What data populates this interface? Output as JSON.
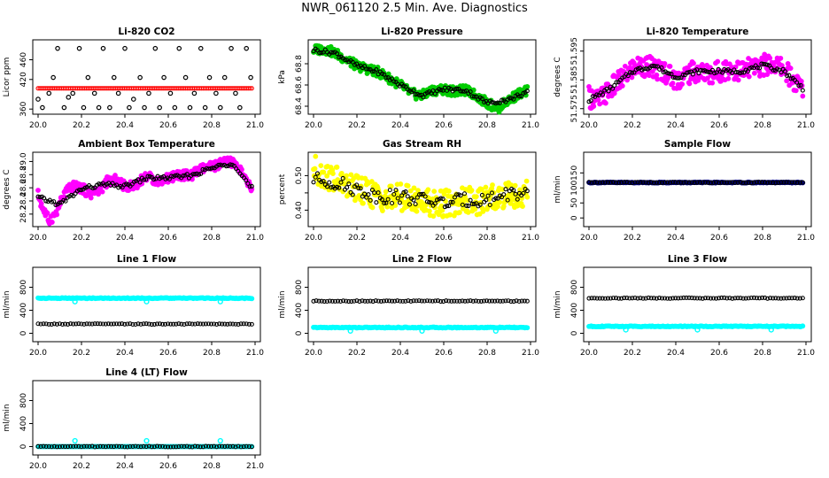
{
  "page_title": "NWR_061120  2.5 Min. Ave. Diagnostics",
  "colors": {
    "magenta": "#ff00ff",
    "red": "#ff0000",
    "green": "#00cc00",
    "yellow": "#ffff00",
    "cyan": "#00ffff",
    "navy": "#000080",
    "black": "#000000"
  },
  "chart_data": [
    {
      "id": "li820-co2",
      "type": "scatter",
      "title": "Li-820 CO2",
      "ylabel": "Licor ppm",
      "xlim": [
        20.0,
        21.0
      ],
      "ylim": [
        355,
        495
      ],
      "xticks": [
        20.0,
        20.2,
        20.4,
        20.6,
        20.8,
        21.0
      ],
      "xtick_labels": [
        "20.0",
        "20.2",
        "20.4",
        "20.6",
        "20.8",
        "21.0"
      ],
      "yticks": [
        360,
        420,
        460
      ],
      "ytick_labels": [
        "360",
        "420",
        "460"
      ],
      "series": [
        {
          "name": "raw",
          "color": "#000000",
          "x": [
            20.0,
            20.02,
            20.05,
            20.07,
            20.09,
            20.12,
            20.14,
            20.16,
            20.19,
            20.21,
            20.23,
            20.26,
            20.28,
            20.3,
            20.33,
            20.35,
            20.37,
            20.4,
            20.42,
            20.44,
            20.47,
            20.49,
            20.51,
            20.54,
            20.56,
            20.58,
            20.61,
            20.63,
            20.65,
            20.68,
            20.7,
            20.72,
            20.75,
            20.77,
            20.79,
            20.82,
            20.84,
            20.86,
            20.89,
            20.91,
            20.93,
            20.96,
            20.98
          ],
          "y": [
            380,
            363,
            392,
            424,
            483,
            363,
            384,
            392,
            483,
            363,
            424,
            392,
            363,
            483,
            363,
            424,
            392,
            483,
            363,
            380,
            424,
            363,
            392,
            483,
            363,
            424,
            392,
            363,
            483,
            424,
            363,
            392,
            483,
            363,
            424,
            392,
            363,
            424,
            483,
            392,
            363,
            483,
            424
          ]
        },
        {
          "name": "avg",
          "color": "#ff0000",
          "x": [
            20.0,
            20.05,
            20.1,
            20.15,
            20.2,
            20.25,
            20.3,
            20.35,
            20.4,
            20.45,
            20.5,
            20.55,
            20.6,
            20.65,
            20.7,
            20.75,
            20.8,
            20.85,
            20.9,
            20.95,
            21.0
          ],
          "y": [
            402,
            402,
            402,
            402,
            402,
            402,
            402,
            402,
            402,
            402,
            402,
            402,
            402,
            402,
            402,
            402,
            402,
            402,
            402,
            402,
            402
          ]
        }
      ]
    },
    {
      "id": "li820-pressure",
      "type": "scatter",
      "title": "Li-820 Pressure",
      "ylabel": "kPa",
      "xlim": [
        20.0,
        21.0
      ],
      "ylim": [
        68.35,
        69.0
      ],
      "xticks": [
        20.0,
        20.2,
        20.4,
        20.6,
        20.8,
        21.0
      ],
      "xtick_labels": [
        "20.0",
        "20.2",
        "20.4",
        "20.6",
        "20.8",
        "21.0"
      ],
      "yticks": [
        68.4,
        68.6,
        68.8
      ],
      "ytick_labels": [
        "68.4",
        "68.6",
        "68.8"
      ],
      "series": [
        {
          "name": "raw",
          "color": "#00cc00",
          "x": [
            20.0,
            20.05,
            20.1,
            20.15,
            20.2,
            20.25,
            20.3,
            20.35,
            20.4,
            20.45,
            20.5,
            20.55,
            20.6,
            20.65,
            20.7,
            20.75,
            20.8,
            20.85,
            20.9,
            20.95,
            21.0
          ],
          "y": [
            68.93,
            68.94,
            68.9,
            68.84,
            68.78,
            68.75,
            68.72,
            68.66,
            68.6,
            68.52,
            68.5,
            68.55,
            68.56,
            68.54,
            68.55,
            68.5,
            68.43,
            68.38,
            68.46,
            68.52,
            68.55
          ]
        },
        {
          "name": "avg",
          "color": "#000000",
          "x": [
            20.0,
            20.1,
            20.2,
            20.3,
            20.4,
            20.5,
            20.6,
            20.7,
            20.8,
            20.9,
            21.0
          ],
          "y": [
            68.93,
            68.9,
            68.78,
            68.72,
            68.6,
            68.5,
            68.56,
            68.55,
            68.43,
            68.46,
            68.55
          ]
        }
      ]
    },
    {
      "id": "li820-temperature",
      "type": "scatter",
      "title": "Li-820 Temperature",
      "ylabel": "degrees C",
      "xlim": [
        20.0,
        21.0
      ],
      "ylim": [
        51.574,
        51.598
      ],
      "xticks": [
        20.0,
        20.2,
        20.4,
        20.6,
        20.8,
        21.0
      ],
      "xtick_labels": [
        "20.0",
        "20.2",
        "20.4",
        "20.6",
        "20.8",
        "21.0"
      ],
      "yticks": [
        51.575,
        51.585,
        51.595
      ],
      "ytick_labels": [
        "51.575",
        "51.585",
        "51.595"
      ],
      "series": [
        {
          "name": "raw",
          "color": "#ff00ff",
          "x": [
            20.0,
            20.05,
            20.1,
            20.15,
            20.2,
            20.25,
            20.3,
            20.35,
            20.4,
            20.45,
            20.5,
            20.55,
            20.6,
            20.65,
            20.7,
            20.75,
            20.8,
            20.85,
            20.9,
            20.95,
            21.0
          ],
          "y": [
            51.579,
            51.578,
            51.582,
            51.585,
            51.589,
            51.59,
            51.589,
            51.588,
            51.585,
            51.587,
            51.588,
            51.587,
            51.588,
            51.589,
            51.588,
            51.589,
            51.59,
            51.591,
            51.589,
            51.584,
            51.581
          ]
        },
        {
          "name": "avg",
          "color": "#000000",
          "x": [
            20.0,
            20.1,
            20.2,
            20.3,
            20.4,
            20.5,
            20.6,
            20.7,
            20.8,
            20.9,
            21.0
          ],
          "y": [
            51.578,
            51.582,
            51.588,
            51.59,
            51.586,
            51.588,
            51.588,
            51.588,
            51.59,
            51.588,
            51.581
          ]
        }
      ]
    },
    {
      "id": "ambient-box-temperature",
      "type": "scatter",
      "title": "Ambient Box Temperature",
      "ylabel": "degrees C",
      "xlim": [
        20.0,
        21.0
      ],
      "ylim": [
        28.05,
        29.1
      ],
      "xticks": [
        20.0,
        20.2,
        20.4,
        20.6,
        20.8,
        21.0
      ],
      "xtick_labels": [
        "20.0",
        "20.2",
        "20.4",
        "20.6",
        "20.8",
        "21.0"
      ],
      "yticks": [
        28.2,
        28.4,
        28.6,
        28.8,
        29.0
      ],
      "ytick_labels": [
        "28.2",
        "28.4",
        "28.6",
        "28.8",
        "29.0"
      ],
      "series": [
        {
          "name": "raw",
          "color": "#ff00ff",
          "x": [
            20.0,
            20.02,
            20.05,
            20.08,
            20.1,
            20.13,
            20.16,
            20.2,
            20.24,
            20.28,
            20.32,
            20.36,
            20.4,
            20.45,
            20.5,
            20.55,
            20.6,
            20.65,
            20.7,
            20.75,
            20.8,
            20.85,
            20.88,
            20.92,
            20.95,
            20.98
          ],
          "y": [
            28.5,
            28.3,
            28.1,
            28.2,
            28.35,
            28.55,
            28.62,
            28.6,
            28.5,
            28.55,
            28.7,
            28.72,
            28.62,
            28.65,
            28.78,
            28.7,
            28.75,
            28.8,
            28.78,
            28.88,
            28.92,
            28.97,
            29.0,
            28.95,
            28.75,
            28.6
          ]
        },
        {
          "name": "avg",
          "color": "#000000",
          "x": [
            20.0,
            20.1,
            20.2,
            20.3,
            20.4,
            20.5,
            20.6,
            20.7,
            20.8,
            20.9,
            20.98
          ],
          "y": [
            28.45,
            28.35,
            28.58,
            28.65,
            28.62,
            28.75,
            28.75,
            28.78,
            28.9,
            28.98,
            28.6
          ]
        }
      ]
    },
    {
      "id": "gas-stream-rh",
      "type": "scatter",
      "title": "Gas Stream RH",
      "ylabel": "percent",
      "xlim": [
        20.0,
        21.0
      ],
      "ylim": [
        0.36,
        0.56
      ],
      "xticks": [
        20.0,
        20.2,
        20.4,
        20.6,
        20.8,
        21.0
      ],
      "xtick_labels": [
        "20.0",
        "20.2",
        "20.4",
        "20.6",
        "20.8",
        "21.0"
      ],
      "yticks": [
        0.4,
        0.45,
        0.5
      ],
      "ytick_labels": [
        "0.40",
        "",
        "0.50"
      ],
      "series": [
        {
          "name": "raw",
          "color": "#ffff00",
          "x": [
            20.0,
            20.05,
            20.1,
            20.15,
            20.2,
            20.25,
            20.3,
            20.35,
            20.4,
            20.45,
            20.5,
            20.55,
            20.6,
            20.65,
            20.7,
            20.75,
            20.8,
            20.85,
            20.9,
            20.95,
            21.0
          ],
          "y": [
            0.52,
            0.5,
            0.49,
            0.47,
            0.46,
            0.45,
            0.44,
            0.43,
            0.44,
            0.43,
            0.43,
            0.42,
            0.42,
            0.42,
            0.43,
            0.42,
            0.43,
            0.44,
            0.45,
            0.44,
            0.45
          ]
        },
        {
          "name": "avg",
          "color": "#000000",
          "x": [
            20.0,
            20.1,
            20.2,
            20.3,
            20.4,
            20.5,
            20.6,
            20.7,
            20.8,
            20.9,
            21.0
          ],
          "y": [
            0.49,
            0.48,
            0.46,
            0.44,
            0.44,
            0.43,
            0.42,
            0.43,
            0.43,
            0.45,
            0.44
          ]
        }
      ]
    },
    {
      "id": "sample-flow",
      "type": "scatter",
      "title": "Sample Flow",
      "ylabel": "ml/min",
      "xlim": [
        20.0,
        21.0
      ],
      "ylim": [
        -20,
        210
      ],
      "xticks": [
        20.0,
        20.2,
        20.4,
        20.6,
        20.8,
        21.0
      ],
      "xtick_labels": [
        "20.0",
        "20.2",
        "20.4",
        "20.6",
        "20.8",
        "21.0"
      ],
      "yticks": [
        0,
        50,
        100,
        150
      ],
      "ytick_labels": [
        "0",
        "50",
        "100",
        "150"
      ],
      "series": [
        {
          "name": "raw",
          "color": "#000080",
          "x": [
            20.0,
            21.0
          ],
          "y": [
            118,
            118
          ]
        },
        {
          "name": "avg",
          "color": "#000000",
          "x": [
            20.0,
            21.0
          ],
          "y": [
            118,
            118
          ]
        }
      ]
    },
    {
      "id": "line-1-flow",
      "type": "scatter",
      "title": "Line 1 Flow",
      "ylabel": "ml/min",
      "xlim": [
        20.0,
        21.0
      ],
      "ylim": [
        -100,
        1100
      ],
      "xticks": [
        20.0,
        20.2,
        20.4,
        20.6,
        20.8,
        21.0
      ],
      "xtick_labels": [
        "20.0",
        "20.2",
        "20.4",
        "20.6",
        "20.8",
        "21.0"
      ],
      "yticks": [
        0,
        400,
        800
      ],
      "ytick_labels": [
        "0",
        "400",
        "800"
      ],
      "series": [
        {
          "name": "raw",
          "color": "#00ffff",
          "x": [
            20.0,
            21.0
          ],
          "y": [
            610,
            610
          ]
        },
        {
          "name": "avg",
          "color": "#000000",
          "x": [
            20.0,
            21.0
          ],
          "y": [
            160,
            160
          ]
        }
      ]
    },
    {
      "id": "line-2-flow",
      "type": "scatter",
      "title": "Line 2 Flow",
      "ylabel": "ml/min",
      "xlim": [
        20.0,
        21.0
      ],
      "ylim": [
        -100,
        1100
      ],
      "xticks": [
        20.0,
        20.2,
        20.4,
        20.6,
        20.8,
        21.0
      ],
      "xtick_labels": [
        "20.0",
        "20.2",
        "20.4",
        "20.6",
        "20.8",
        "21.0"
      ],
      "yticks": [
        0,
        400,
        800
      ],
      "ytick_labels": [
        "0",
        "400",
        "800"
      ],
      "series": [
        {
          "name": "raw",
          "color": "#00ffff",
          "x": [
            20.0,
            21.0
          ],
          "y": [
            100,
            100
          ]
        },
        {
          "name": "avg",
          "color": "#000000",
          "x": [
            20.0,
            21.0
          ],
          "y": [
            560,
            560
          ]
        }
      ]
    },
    {
      "id": "line-3-flow",
      "type": "scatter",
      "title": "Line 3 Flow",
      "ylabel": "ml/min",
      "xlim": [
        20.0,
        21.0
      ],
      "ylim": [
        -100,
        1100
      ],
      "xticks": [
        20.0,
        20.2,
        20.4,
        20.6,
        20.8,
        21.0
      ],
      "xtick_labels": [
        "20.0",
        "20.2",
        "20.4",
        "20.6",
        "20.8",
        "21.0"
      ],
      "yticks": [
        0,
        400,
        800
      ],
      "ytick_labels": [
        "0",
        "400",
        "800"
      ],
      "series": [
        {
          "name": "raw",
          "color": "#00ffff",
          "x": [
            20.0,
            21.0
          ],
          "y": [
            120,
            120
          ]
        },
        {
          "name": "avg",
          "color": "#000000",
          "x": [
            20.0,
            21.0
          ],
          "y": [
            610,
            610
          ]
        }
      ]
    },
    {
      "id": "line-4-lt-flow",
      "type": "scatter",
      "title": "Line 4 (LT) Flow",
      "ylabel": "ml/min",
      "xlim": [
        20.0,
        21.0
      ],
      "ylim": [
        -100,
        1100
      ],
      "xticks": [
        20.0,
        20.2,
        20.4,
        20.6,
        20.8,
        21.0
      ],
      "xtick_labels": [
        "20.0",
        "20.2",
        "20.4",
        "20.6",
        "20.8",
        "21.0"
      ],
      "yticks": [
        0,
        400,
        800
      ],
      "ytick_labels": [
        "0",
        "400",
        "800"
      ],
      "series": [
        {
          "name": "raw",
          "color": "#00ffff",
          "x": [
            20.0,
            20.17,
            20.5,
            20.84,
            21.0
          ],
          "y": [
            0,
            100,
            100,
            100,
            0
          ]
        },
        {
          "name": "avg",
          "color": "#000000",
          "x": [
            20.0,
            21.0
          ],
          "y": [
            0,
            0
          ]
        }
      ]
    }
  ]
}
